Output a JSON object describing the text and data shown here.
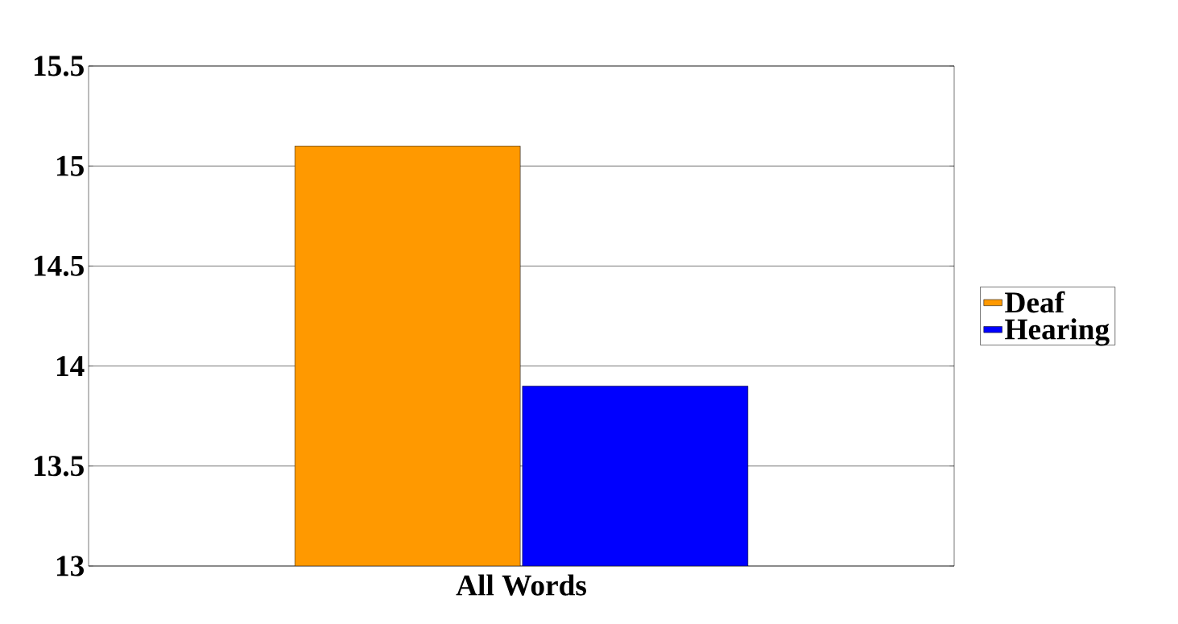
{
  "chart_data": {
    "type": "bar",
    "categories": [
      "All Words"
    ],
    "series": [
      {
        "name": "Deaf",
        "color": "#ff9900",
        "values": [
          15.1
        ]
      },
      {
        "name": "Hearing",
        "color": "#0000ff",
        "values": [
          13.9
        ]
      }
    ],
    "ylim": [
      13,
      15.5
    ],
    "yticks": [
      13,
      13.5,
      14,
      14.5,
      15,
      15.5
    ],
    "grid": "y",
    "legend": "right"
  }
}
